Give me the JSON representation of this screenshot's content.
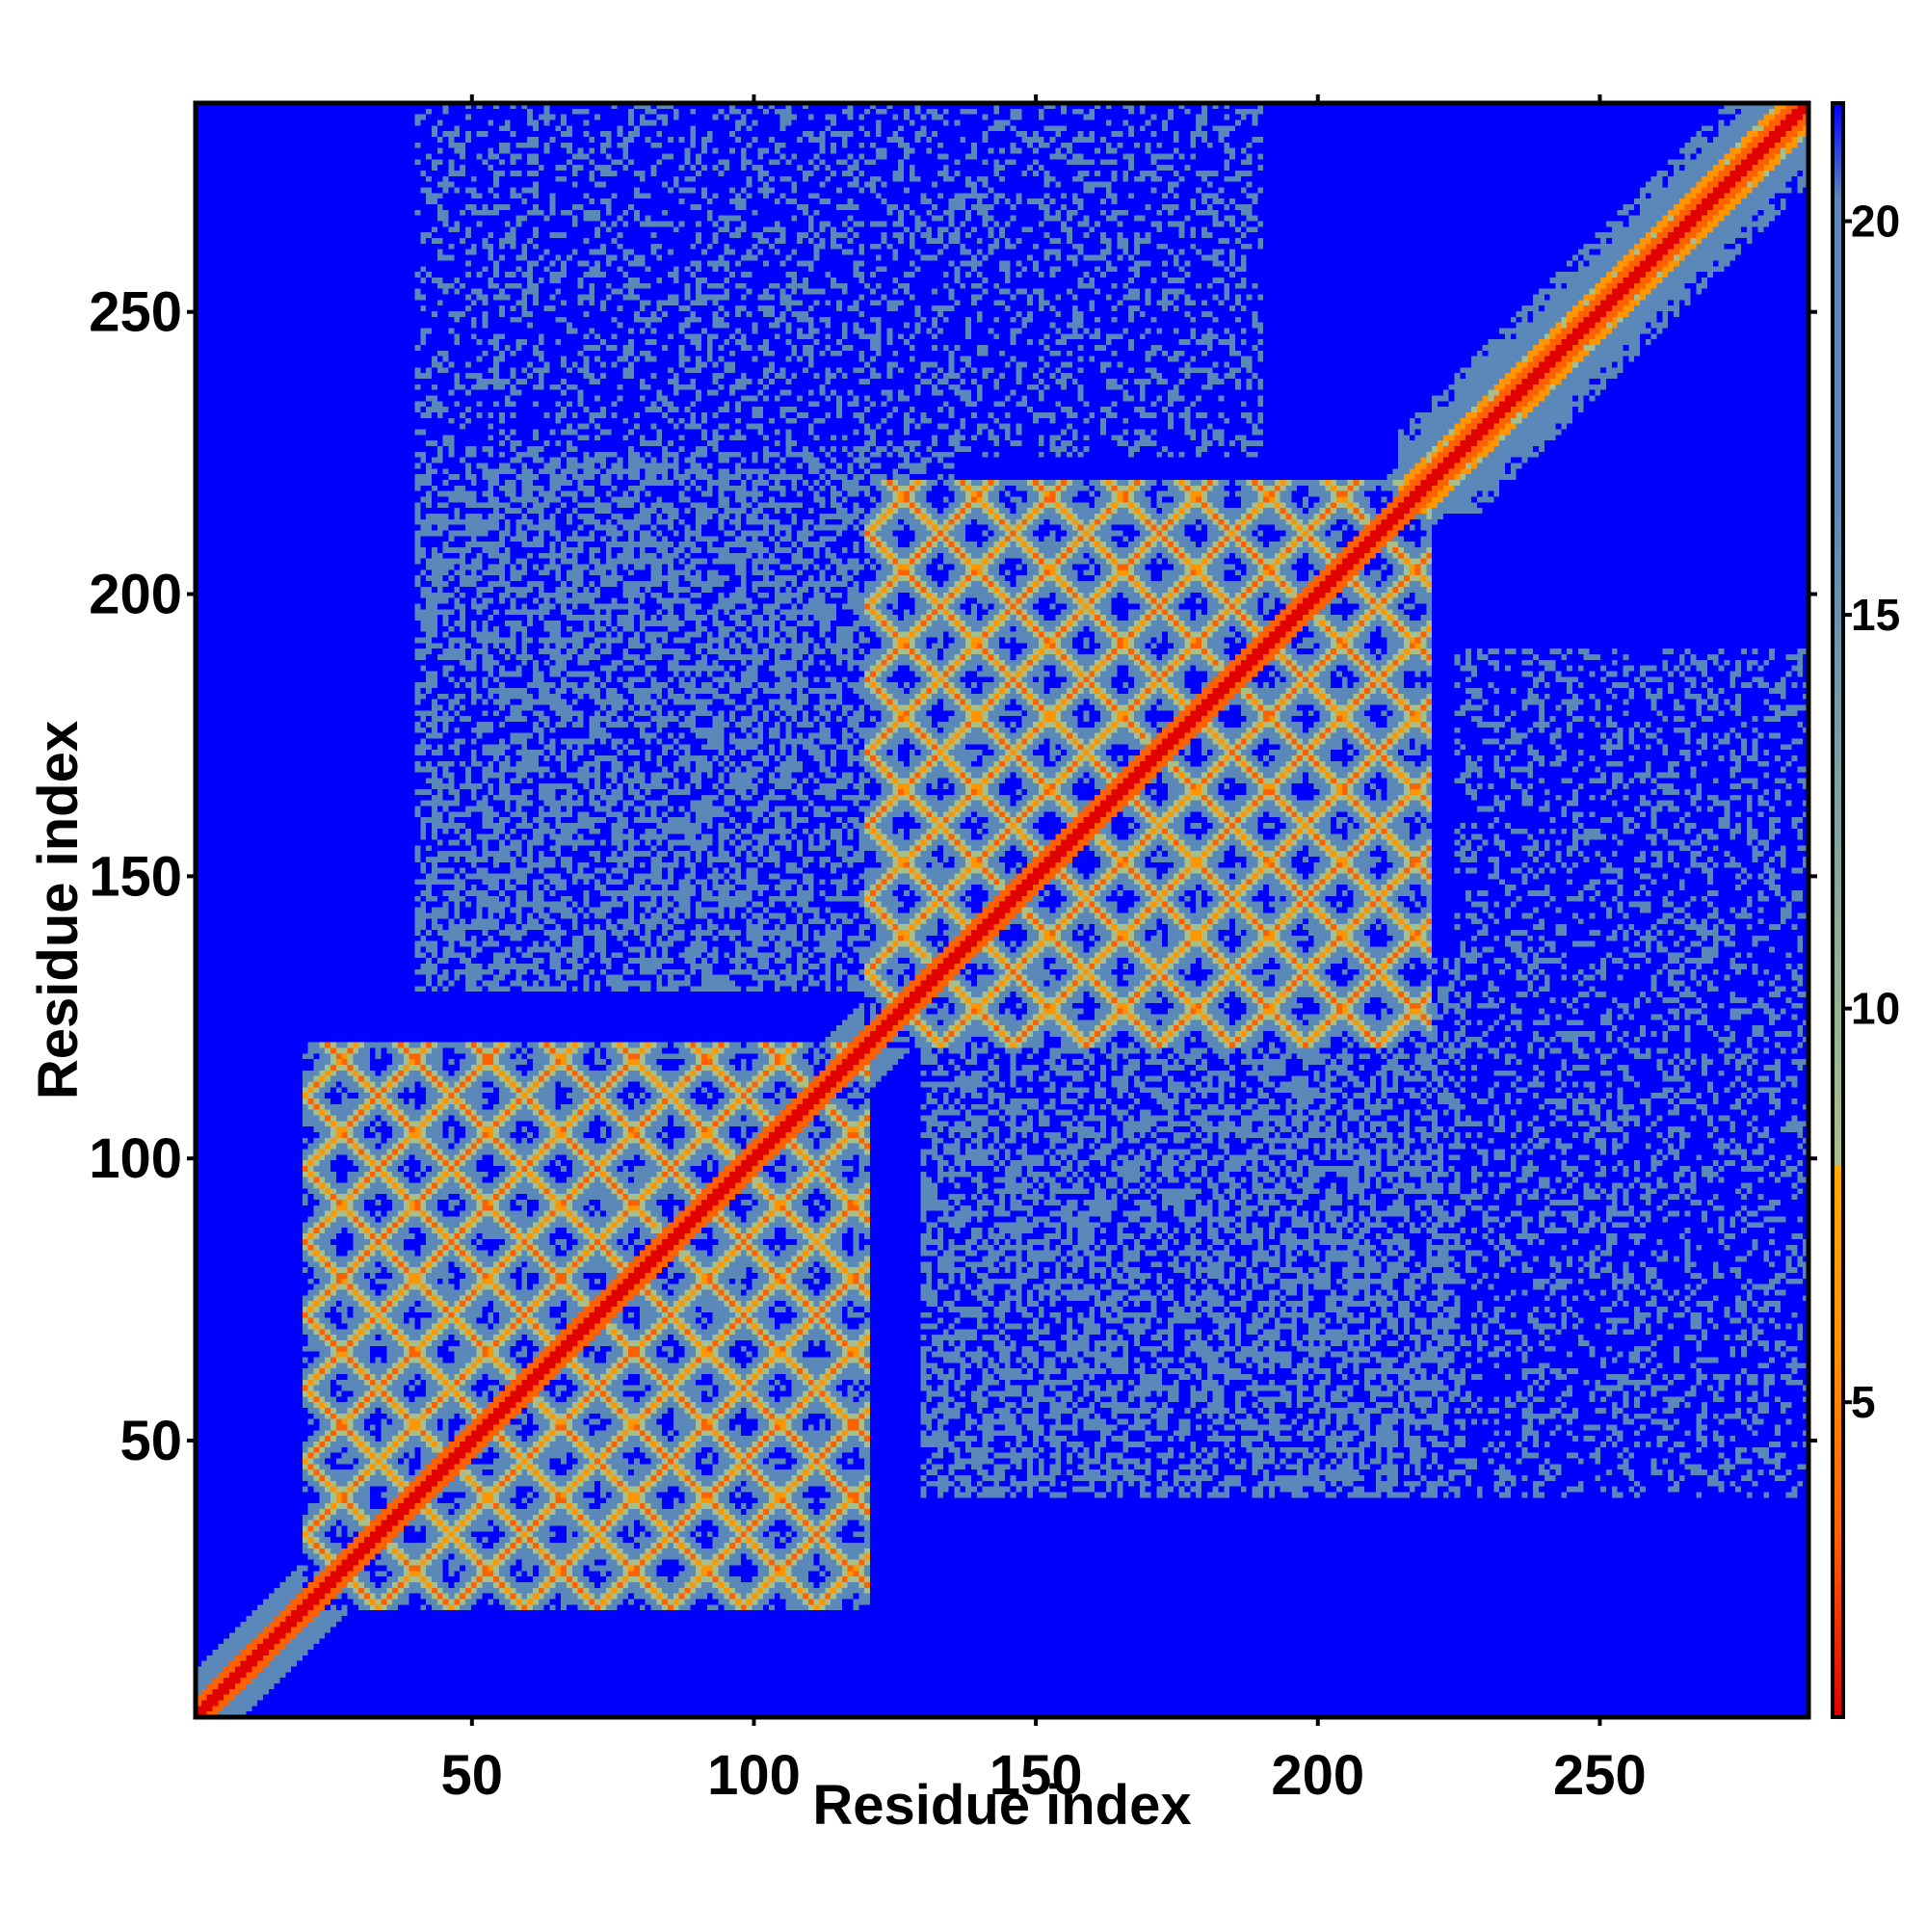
{
  "chart_data": {
    "type": "heatmap",
    "title": "",
    "xlabel": "Residue index",
    "ylabel": "Residue index",
    "n_residues": 287,
    "xlim": [
      1,
      287
    ],
    "ylim": [
      1,
      287
    ],
    "x_ticks": [
      50,
      100,
      150,
      200,
      250
    ],
    "y_ticks": [
      50,
      100,
      150,
      200,
      250
    ],
    "x_tick_labels": [
      "50",
      "100",
      "150",
      "200",
      "250"
    ],
    "y_tick_labels": [
      "50",
      "100",
      "150",
      "200",
      "250"
    ],
    "grid": false,
    "colorbar": {
      "position": "right",
      "range": [
        1,
        21.5
      ],
      "ticks": [
        5,
        10,
        15,
        20
      ],
      "tick_labels": [
        "5",
        "10",
        "15",
        "20"
      ],
      "cutoff": 8,
      "colors_below_cutoff": [
        "#e00000",
        "#ff6000",
        "#ff9000",
        "#ffaa00"
      ],
      "colors_above_cutoff": [
        "#a9bf8a",
        "#5a88b8",
        "#0000ff"
      ]
    },
    "structure": {
      "description_units": "residue index",
      "main_diagonal": [
        1,
        287
      ],
      "domains": [
        {
          "start": 20,
          "end": 120,
          "strand_period": 13
        },
        {
          "start": 120,
          "end": 220,
          "strand_period": 13
        }
      ],
      "inter_domain_contact": true,
      "c_terminal_helix": [
        220,
        287
      ]
    }
  }
}
